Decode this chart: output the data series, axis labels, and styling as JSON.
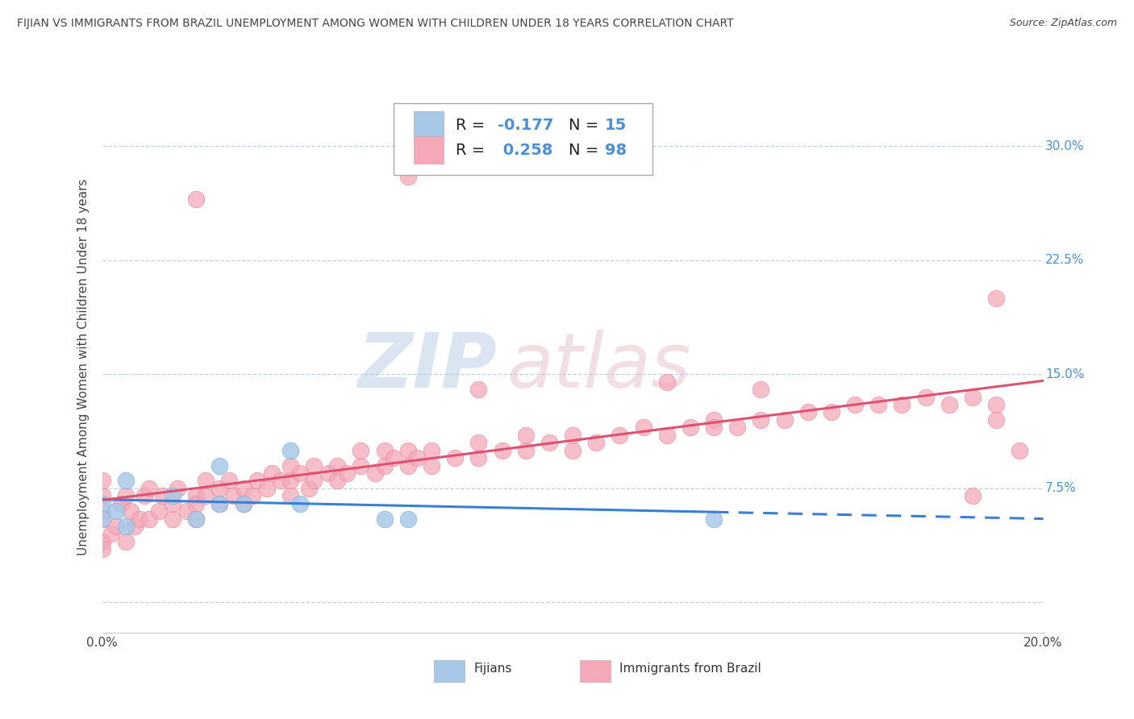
{
  "title": "FIJIAN VS IMMIGRANTS FROM BRAZIL UNEMPLOYMENT AMONG WOMEN WITH CHILDREN UNDER 18 YEARS CORRELATION CHART",
  "source": "Source: ZipAtlas.com",
  "ylabel": "Unemployment Among Women with Children Under 18 years",
  "xlim": [
    0.0,
    0.2
  ],
  "ylim": [
    -0.02,
    0.33
  ],
  "fijian_color": "#a8c8e8",
  "fijian_edge_color": "#7aaed4",
  "brazil_color": "#f4a8b8",
  "brazil_edge_color": "#e8809a",
  "fijian_line_color": "#3a7fd4",
  "brazil_line_color": "#e05070",
  "legend_fijian_R": "-0.177",
  "legend_fijian_N": "15",
  "legend_brazil_R": "0.258",
  "legend_brazil_N": "98",
  "watermark_zip": "ZIP",
  "watermark_atlas": "atlas",
  "background_color": "#ffffff",
  "grid_color": "#c0d0e0",
  "tick_color": "#4a90d9",
  "label_color": "#444444",
  "fijian_x": [
    0.0,
    0.0,
    0.003,
    0.005,
    0.005,
    0.015,
    0.02,
    0.025,
    0.025,
    0.03,
    0.04,
    0.042,
    0.06,
    0.065,
    0.13
  ],
  "fijian_y": [
    0.065,
    0.055,
    0.06,
    0.05,
    0.08,
    0.07,
    0.055,
    0.065,
    0.09,
    0.065,
    0.1,
    0.065,
    0.055,
    0.055,
    0.055
  ],
  "brazil_x": [
    0.0,
    0.0,
    0.0,
    0.0,
    0.0,
    0.0,
    0.002,
    0.003,
    0.004,
    0.005,
    0.005,
    0.006,
    0.007,
    0.008,
    0.009,
    0.01,
    0.01,
    0.012,
    0.013,
    0.015,
    0.015,
    0.016,
    0.018,
    0.02,
    0.02,
    0.02,
    0.022,
    0.022,
    0.025,
    0.025,
    0.027,
    0.028,
    0.03,
    0.03,
    0.032,
    0.033,
    0.035,
    0.036,
    0.038,
    0.04,
    0.04,
    0.04,
    0.042,
    0.044,
    0.045,
    0.045,
    0.048,
    0.05,
    0.05,
    0.052,
    0.055,
    0.055,
    0.058,
    0.06,
    0.06,
    0.062,
    0.065,
    0.065,
    0.067,
    0.07,
    0.07,
    0.075,
    0.08,
    0.08,
    0.085,
    0.09,
    0.09,
    0.095,
    0.1,
    0.1,
    0.105,
    0.11,
    0.115,
    0.12,
    0.125,
    0.13,
    0.135,
    0.14,
    0.145,
    0.15,
    0.155,
    0.16,
    0.165,
    0.17,
    0.175,
    0.18,
    0.185,
    0.19,
    0.19,
    0.195,
    0.02,
    0.065,
    0.13,
    0.185,
    0.14,
    0.19,
    0.08,
    0.12
  ],
  "brazil_y": [
    0.04,
    0.055,
    0.035,
    0.06,
    0.07,
    0.08,
    0.045,
    0.05,
    0.065,
    0.04,
    0.07,
    0.06,
    0.05,
    0.055,
    0.07,
    0.055,
    0.075,
    0.06,
    0.07,
    0.055,
    0.065,
    0.075,
    0.06,
    0.055,
    0.07,
    0.065,
    0.07,
    0.08,
    0.065,
    0.075,
    0.08,
    0.07,
    0.065,
    0.075,
    0.07,
    0.08,
    0.075,
    0.085,
    0.08,
    0.07,
    0.08,
    0.09,
    0.085,
    0.075,
    0.09,
    0.08,
    0.085,
    0.08,
    0.09,
    0.085,
    0.09,
    0.1,
    0.085,
    0.09,
    0.1,
    0.095,
    0.09,
    0.1,
    0.095,
    0.09,
    0.1,
    0.095,
    0.095,
    0.105,
    0.1,
    0.1,
    0.11,
    0.105,
    0.1,
    0.11,
    0.105,
    0.11,
    0.115,
    0.11,
    0.115,
    0.12,
    0.115,
    0.12,
    0.12,
    0.125,
    0.125,
    0.13,
    0.13,
    0.13,
    0.135,
    0.13,
    0.135,
    0.13,
    0.12,
    0.1,
    0.265,
    0.28,
    0.115,
    0.07,
    0.14,
    0.2,
    0.14,
    0.145
  ]
}
